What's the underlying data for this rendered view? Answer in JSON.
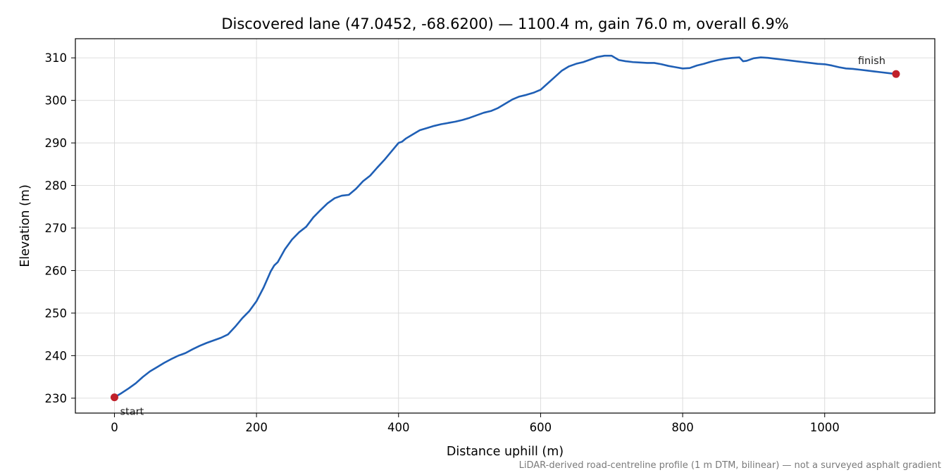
{
  "chart_data": {
    "type": "line",
    "title": "Discovered lane (47.0452, -68.6200) — 1100.4 m, gain 76.0 m, overall 6.9%",
    "xlabel": "Distance uphill (m)",
    "ylabel": "Elevation (m)",
    "xlim": [
      -55,
      1155
    ],
    "ylim": [
      226.5,
      314.5
    ],
    "xticks": [
      0,
      200,
      400,
      600,
      800,
      1000
    ],
    "yticks": [
      230,
      240,
      250,
      260,
      270,
      280,
      290,
      300,
      310
    ],
    "grid": true,
    "line_color": "#1f5fb5",
    "marker_color": "#c0202a",
    "series": [
      {
        "x": [
          0,
          10,
          20,
          30,
          40,
          50,
          60,
          70,
          80,
          90,
          100,
          110,
          120,
          130,
          140,
          150,
          160,
          170,
          180,
          190,
          200,
          210,
          220,
          225,
          230,
          240,
          250,
          260,
          270,
          280,
          290,
          300,
          310,
          320,
          330,
          340,
          350,
          360,
          370,
          380,
          390,
          400,
          405,
          410,
          420,
          430,
          440,
          450,
          460,
          470,
          480,
          490,
          500,
          510,
          520,
          530,
          540,
          550,
          560,
          570,
          580,
          590,
          600,
          610,
          620,
          630,
          640,
          650,
          660,
          670,
          680,
          690,
          700,
          710,
          720,
          730,
          740,
          750,
          760,
          770,
          780,
          790,
          800,
          810,
          820,
          830,
          840,
          850,
          860,
          870,
          880,
          885,
          890,
          900,
          910,
          920,
          930,
          940,
          950,
          960,
          970,
          980,
          990,
          1000,
          1010,
          1020,
          1030,
          1040,
          1050,
          1060,
          1070,
          1080,
          1090,
          1100.4
        ],
        "y": [
          230.2,
          231.2,
          232.3,
          233.5,
          235.0,
          236.3,
          237.3,
          238.3,
          239.2,
          240.0,
          240.6,
          241.5,
          242.3,
          243.0,
          243.6,
          244.2,
          245.0,
          246.8,
          248.8,
          250.5,
          252.8,
          256.0,
          259.8,
          261.2,
          262.0,
          265.0,
          267.3,
          269.0,
          270.3,
          272.5,
          274.2,
          275.8,
          277.0,
          277.6,
          277.8,
          279.2,
          281.0,
          282.3,
          284.2,
          286.0,
          288.0,
          290.0,
          290.3,
          291.0,
          292.0,
          293.0,
          293.5,
          294.0,
          294.4,
          294.7,
          295.0,
          295.4,
          295.9,
          296.5,
          297.1,
          297.5,
          298.2,
          299.2,
          300.2,
          300.9,
          301.3,
          301.8,
          302.5,
          304.0,
          305.5,
          307.0,
          308.0,
          308.6,
          309.0,
          309.6,
          310.2,
          310.5,
          310.5,
          309.5,
          309.2,
          309.0,
          308.9,
          308.8,
          308.8,
          308.5,
          308.1,
          307.8,
          307.5,
          307.6,
          308.2,
          308.6,
          309.1,
          309.5,
          309.8,
          310.0,
          310.1,
          309.2,
          309.3,
          309.9,
          310.1,
          310.0,
          309.8,
          309.6,
          309.4,
          309.2,
          309.0,
          308.8,
          308.6,
          308.5,
          308.2,
          307.8,
          307.5,
          307.4,
          307.2,
          307.0,
          306.8,
          306.6,
          306.4,
          306.2
        ]
      }
    ],
    "annotations": [
      {
        "text": "start",
        "x": 0,
        "y": 230.2
      },
      {
        "text": "finish",
        "x": 1100.4,
        "y": 306.2
      }
    ],
    "footnote": "LiDAR-derived road-centreline profile (1 m DTM, bilinear) — not a surveyed asphalt gradient"
  }
}
